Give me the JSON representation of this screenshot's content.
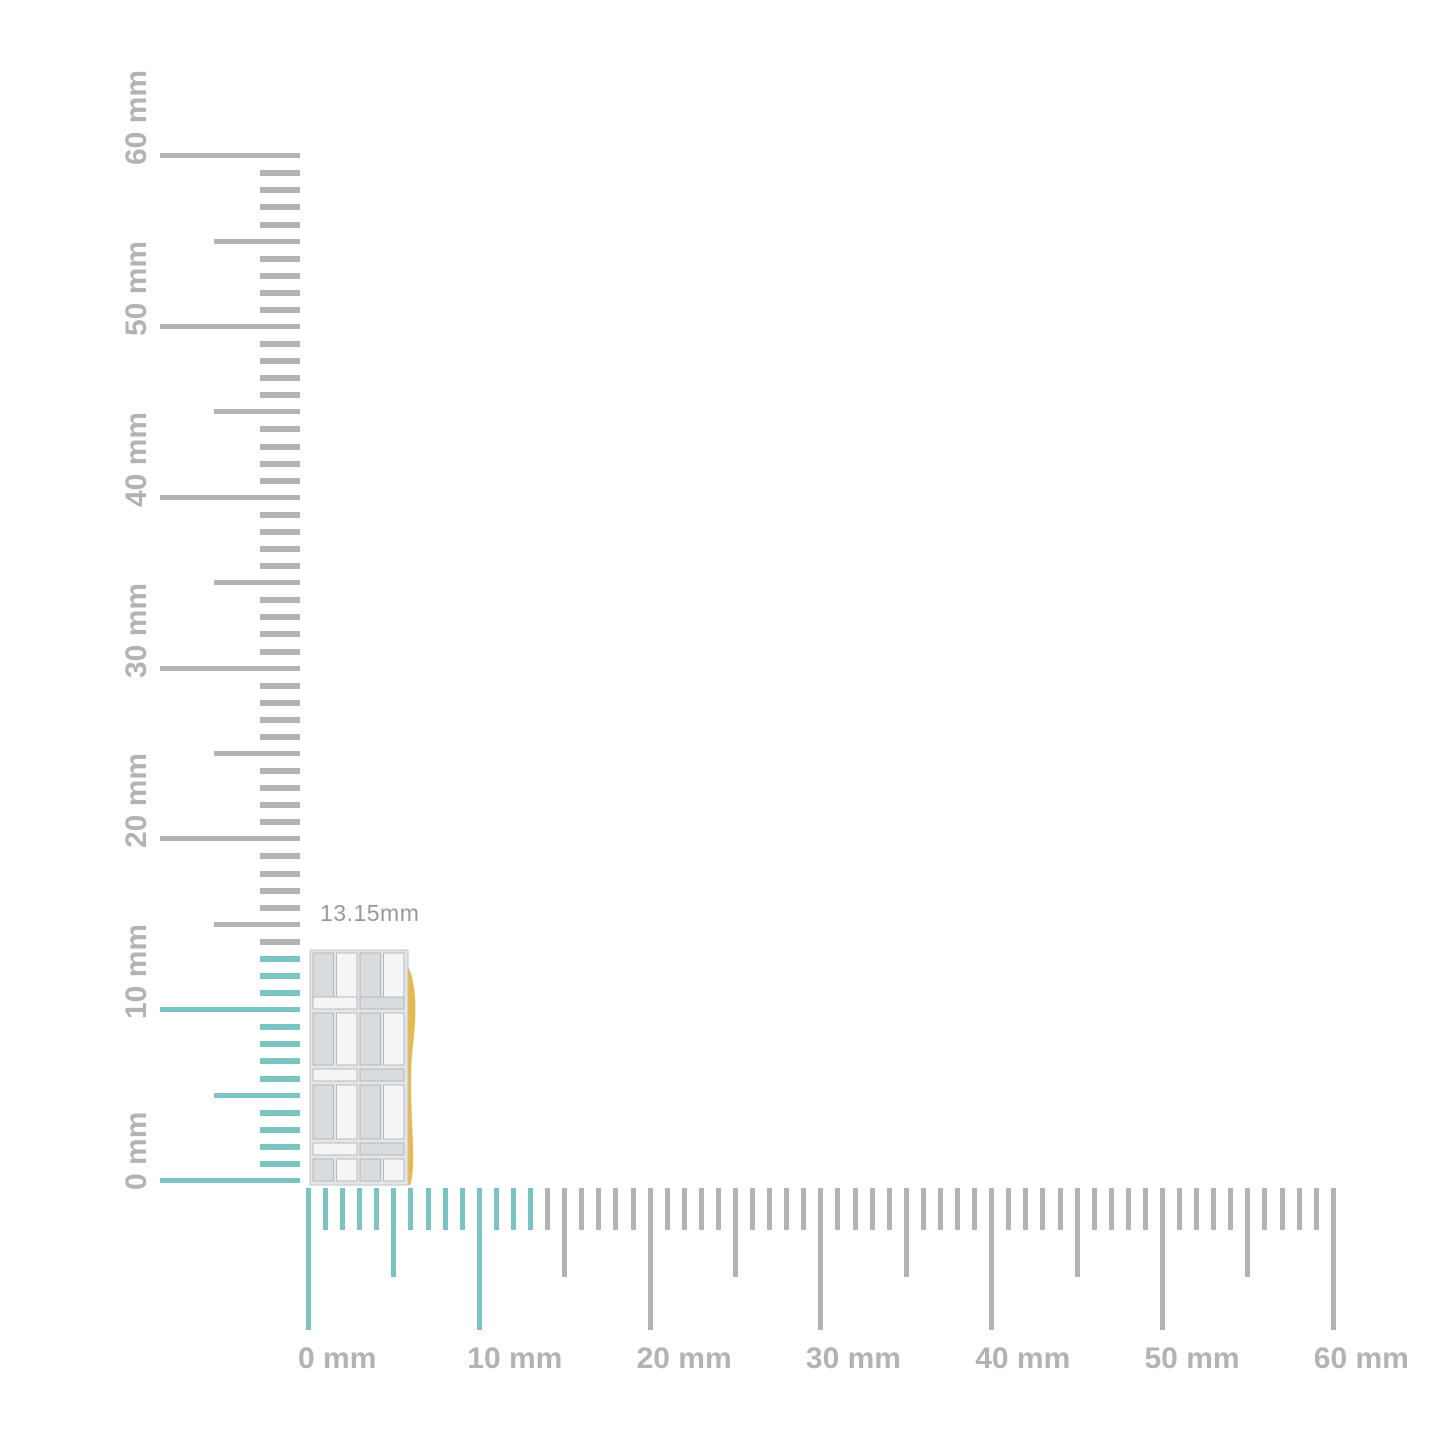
{
  "dimension_label": "13.15mm",
  "measured_mm": 13.15,
  "unit": "mm",
  "ruler_range_mm": [
    0,
    60
  ],
  "vertical_ruler_labels": [
    "0 mm",
    "10 mm",
    "20 mm",
    "30 mm",
    "40 mm",
    "50 mm",
    "60 mm"
  ],
  "horizontal_ruler_labels": [
    "0 mm",
    "10 mm",
    "20 mm",
    "30 mm",
    "40 mm",
    "50 mm",
    "60 mm"
  ],
  "colors": {
    "highlight_ticks": "#7cc4c4",
    "ticks": "#b3b3b3",
    "label": "#b3b3b3",
    "metal": "#e8b84a",
    "stones": "#e6e8ea"
  }
}
